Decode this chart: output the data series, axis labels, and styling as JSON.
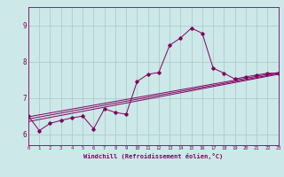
{
  "title": "",
  "xlabel": "Windchill (Refroidissement éolien,°C)",
  "ylabel": "",
  "background_color": "#cce8e8",
  "line_color": "#800060",
  "xmin": 0,
  "xmax": 23,
  "ymin": 5.7,
  "ymax": 9.5,
  "yticks": [
    6,
    7,
    8,
    9
  ],
  "xticks": [
    0,
    1,
    2,
    3,
    4,
    5,
    6,
    7,
    8,
    9,
    10,
    11,
    12,
    13,
    14,
    15,
    16,
    17,
    18,
    19,
    20,
    21,
    22,
    23
  ],
  "series": [
    [
      0,
      6.5
    ],
    [
      1,
      6.1
    ],
    [
      2,
      6.3
    ],
    [
      3,
      6.38
    ],
    [
      4,
      6.45
    ],
    [
      5,
      6.5
    ],
    [
      6,
      6.15
    ],
    [
      7,
      6.7
    ],
    [
      8,
      6.6
    ],
    [
      9,
      6.55
    ],
    [
      10,
      7.45
    ],
    [
      11,
      7.65
    ],
    [
      12,
      7.7
    ],
    [
      13,
      8.45
    ],
    [
      14,
      8.65
    ],
    [
      15,
      8.92
    ],
    [
      16,
      8.78
    ],
    [
      17,
      7.82
    ],
    [
      18,
      7.68
    ],
    [
      19,
      7.52
    ],
    [
      20,
      7.58
    ],
    [
      21,
      7.63
    ],
    [
      22,
      7.68
    ],
    [
      23,
      7.68
    ]
  ],
  "regression_lines": [
    {
      "x0": 0,
      "y0": 6.35,
      "x1": 23,
      "y1": 7.65
    },
    {
      "x0": 0,
      "y0": 6.42,
      "x1": 23,
      "y1": 7.67
    },
    {
      "x0": 0,
      "y0": 6.48,
      "x1": 23,
      "y1": 7.7
    }
  ]
}
